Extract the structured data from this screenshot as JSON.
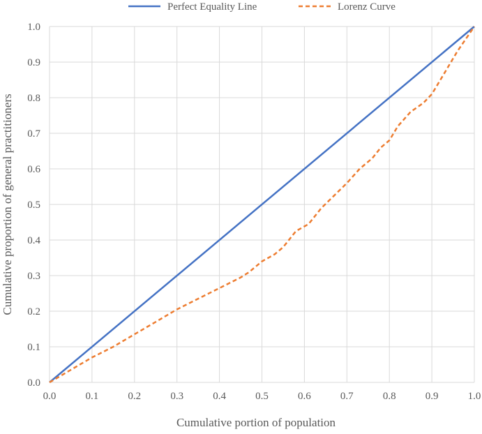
{
  "chart_data": {
    "type": "line",
    "title": "",
    "xlabel": "Cumulative portion of population",
    "ylabel": "Cumulative proportion of general practitioners",
    "xlim": [
      0,
      1
    ],
    "ylim": [
      0,
      1
    ],
    "x_ticks": [
      "0.0",
      "0.1",
      "0.2",
      "0.3",
      "0.4",
      "0.5",
      "0.6",
      "0.7",
      "0.8",
      "0.9",
      "1.0"
    ],
    "y_ticks": [
      "0.0",
      "0.1",
      "0.2",
      "0.3",
      "0.4",
      "0.5",
      "0.6",
      "0.7",
      "0.8",
      "0.9",
      "1.0"
    ],
    "grid": "vertical and horizontal",
    "legend_position": "top",
    "series": [
      {
        "name": "Perfect Equality Line",
        "color": "#4472C4",
        "style": "solid",
        "x": [
          0,
          1
        ],
        "y": [
          0,
          1
        ]
      },
      {
        "name": "Lorenz Curve",
        "color": "#ED7D31",
        "style": "dashed",
        "x": [
          0,
          0.05,
          0.1,
          0.15,
          0.2,
          0.25,
          0.3,
          0.35,
          0.4,
          0.45,
          0.47,
          0.5,
          0.53,
          0.55,
          0.58,
          0.61,
          0.64,
          0.67,
          0.7,
          0.73,
          0.76,
          0.78,
          0.8,
          0.82,
          0.85,
          0.88,
          0.9,
          0.93,
          0.96,
          1.0
        ],
        "y": [
          0,
          0.035,
          0.07,
          0.1,
          0.135,
          0.17,
          0.205,
          0.235,
          0.265,
          0.295,
          0.31,
          0.34,
          0.36,
          0.38,
          0.425,
          0.445,
          0.49,
          0.525,
          0.56,
          0.6,
          0.63,
          0.66,
          0.68,
          0.72,
          0.76,
          0.785,
          0.81,
          0.87,
          0.93,
          1.0
        ]
      }
    ]
  }
}
